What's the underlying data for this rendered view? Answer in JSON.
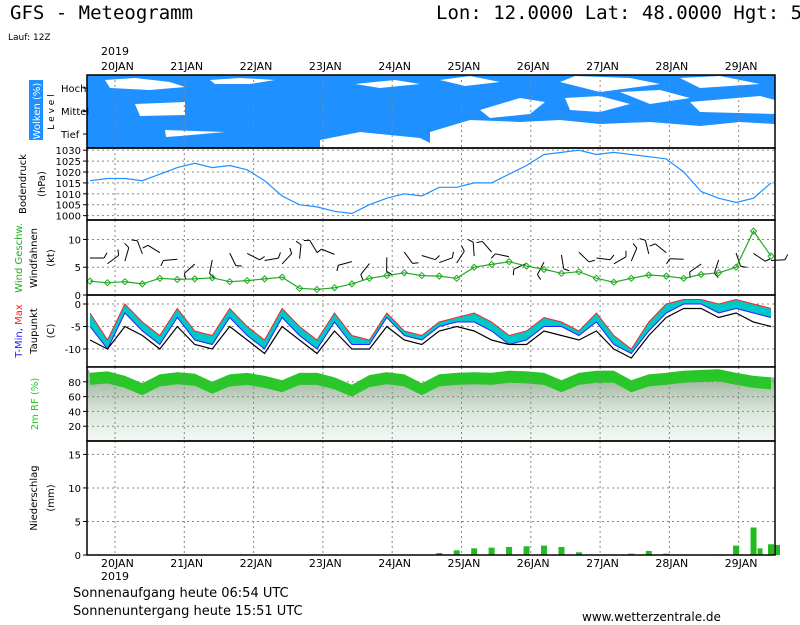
{
  "header": {
    "title": "GFS - Meteogramm",
    "location": "Lon: 12.0000 Lat: 48.0000 Hgt: 5",
    "run": "Lauf: 12Z"
  },
  "footer": {
    "sunrise": "Sonnenaufgang heute 06:54 UTC",
    "sunset": "Sonnenuntergang heute 15:51 UTC",
    "credit": "www.wetterzentrale.de"
  },
  "colors": {
    "cloud_sky": "#1e90ff",
    "pressure_line": "#1e90ff",
    "wind_speed": "#22aa22",
    "temp_band": "#00c8c8",
    "temp_max": "#ff2222",
    "temp_min": "#2222ff",
    "humidity": "#22c822",
    "precip": "#22bb22"
  },
  "chart_data": [
    {
      "type": "table",
      "panel": "clouds",
      "ylabel": "Wolken (%)",
      "level_axis": "L e v e l",
      "levels": [
        "Hoch",
        "Mittel",
        "Tief"
      ],
      "x_labels": [
        "20JAN",
        "21JAN",
        "22JAN",
        "23JAN",
        "24JAN",
        "25JAN",
        "26JAN",
        "27JAN",
        "28JAN",
        "29JAN"
      ],
      "year": "2019"
    },
    {
      "type": "line",
      "panel": "pressure",
      "ylabel": "Bodendruck",
      "unit": "(hPa)",
      "yticks": [
        1000,
        1005,
        1010,
        1015,
        1020,
        1025,
        1030
      ],
      "ylim": [
        998,
        1031
      ],
      "x": [
        0,
        6,
        12,
        18,
        24,
        30,
        36,
        42,
        48,
        54,
        60,
        66,
        72,
        78,
        84,
        90,
        96,
        102,
        108,
        114,
        120,
        126,
        132,
        138,
        144,
        150,
        156,
        162,
        168,
        174,
        180,
        186,
        192,
        198,
        204,
        210,
        216,
        222,
        228,
        234
      ],
      "values": [
        1016,
        1017,
        1017,
        1016,
        1019,
        1022,
        1024,
        1022,
        1023,
        1021,
        1016,
        1009,
        1005,
        1004,
        1002,
        1001,
        1005,
        1008,
        1010,
        1009,
        1013,
        1013,
        1015,
        1015,
        1019,
        1023,
        1028,
        1029,
        1030,
        1028,
        1029,
        1028,
        1027,
        1026,
        1020,
        1011,
        1008,
        1006,
        1008,
        1015
      ]
    },
    {
      "type": "line",
      "panel": "wind",
      "ylabel": "Wind Geschw.",
      "ylabel2": "Windfahnen",
      "unit": "(kt)",
      "yticks": [
        0,
        5,
        10
      ],
      "ylim": [
        0,
        13.5
      ],
      "x": [
        0,
        6,
        12,
        18,
        24,
        30,
        36,
        42,
        48,
        54,
        60,
        66,
        72,
        78,
        84,
        90,
        96,
        102,
        108,
        114,
        120,
        126,
        132,
        138,
        144,
        150,
        156,
        162,
        168,
        174,
        180,
        186,
        192,
        198,
        204,
        210,
        216,
        222,
        228,
        234
      ],
      "values": [
        2.5,
        2.2,
        2.4,
        2.0,
        3.0,
        2.8,
        2.9,
        3.1,
        2.4,
        2.6,
        2.9,
        3.2,
        1.2,
        1.0,
        1.3,
        2.0,
        3.0,
        3.5,
        4.0,
        3.5,
        3.4,
        3.0,
        5.0,
        5.5,
        6.0,
        5.2,
        4.6,
        3.9,
        4.2,
        3.0,
        2.3,
        3.0,
        3.6,
        3.4,
        3.0,
        3.7,
        4.0,
        5.0,
        11.5,
        7.0
      ]
    },
    {
      "type": "area",
      "panel": "temperature",
      "ylabel": "T-Min, Max",
      "ylabel2": "Taupunkt",
      "unit": "(C)",
      "yticks": [
        0,
        -5,
        -10
      ],
      "ylim": [
        -14,
        2
      ],
      "x": [
        0,
        6,
        12,
        18,
        24,
        30,
        36,
        42,
        48,
        54,
        60,
        66,
        72,
        78,
        84,
        90,
        96,
        102,
        108,
        114,
        120,
        126,
        132,
        138,
        144,
        150,
        156,
        162,
        168,
        174,
        180,
        186,
        192,
        198,
        204,
        210,
        216,
        222,
        228,
        234
      ],
      "series": [
        {
          "name": "Max",
          "values": [
            -2,
            -8,
            0,
            -4,
            -7,
            -1,
            -6,
            -7,
            -1,
            -5,
            -8,
            -1,
            -5,
            -8,
            -2,
            -7,
            -8,
            -2,
            -6,
            -7,
            -4,
            -3,
            -2,
            -4,
            -7,
            -6,
            -3,
            -4,
            -6,
            -2,
            -7,
            -10,
            -4,
            0,
            1,
            1,
            0,
            1,
            0,
            -1
          ]
        },
        {
          "name": "Min",
          "values": [
            -5,
            -10,
            -2,
            -6,
            -9,
            -3,
            -8,
            -9,
            -3,
            -7,
            -10,
            -3,
            -7,
            -10,
            -4,
            -9,
            -9,
            -3,
            -7,
            -8,
            -5,
            -4,
            -4,
            -6,
            -9,
            -8,
            -5,
            -5,
            -7,
            -4,
            -9,
            -11,
            -6,
            -2,
            0,
            0,
            -2,
            -1,
            -2,
            -3
          ]
        },
        {
          "name": "Taupunkt",
          "values": [
            -8,
            -10,
            -5,
            -7,
            -10,
            -5,
            -9,
            -10,
            -5,
            -8,
            -11,
            -5,
            -8,
            -11,
            -6,
            -10,
            -10,
            -5,
            -8,
            -9,
            -6,
            -5,
            -6,
            -8,
            -9,
            -9,
            -6,
            -7,
            -8,
            -6,
            -10,
            -12,
            -7,
            -3,
            -1,
            -1,
            -3,
            -2,
            -4,
            -5
          ]
        }
      ]
    },
    {
      "type": "area",
      "panel": "humidity",
      "ylabel": "2m RF (%)",
      "yticks": [
        20,
        40,
        60,
        80
      ],
      "ylim": [
        0,
        100
      ],
      "x": [
        0,
        6,
        12,
        18,
        24,
        30,
        36,
        42,
        48,
        54,
        60,
        66,
        72,
        78,
        84,
        90,
        96,
        102,
        108,
        114,
        120,
        126,
        132,
        138,
        144,
        150,
        156,
        162,
        168,
        174,
        180,
        186,
        192,
        198,
        204,
        210,
        216,
        222,
        228,
        234
      ],
      "values": [
        92,
        94,
        88,
        78,
        90,
        93,
        91,
        80,
        90,
        92,
        88,
        82,
        92,
        92,
        86,
        76,
        89,
        93,
        90,
        78,
        90,
        92,
        93,
        92,
        95,
        94,
        92,
        82,
        92,
        95,
        95,
        82,
        90,
        92,
        95,
        96,
        97,
        92,
        88,
        86
      ]
    },
    {
      "type": "bar",
      "panel": "precipitation",
      "ylabel": "Niederschlag",
      "unit": "(mm)",
      "yticks": [
        0,
        5,
        10,
        15
      ],
      "ylim": [
        0,
        17
      ],
      "x": [
        120,
        126,
        132,
        138,
        144,
        150,
        156,
        162,
        168,
        174,
        180,
        186,
        192,
        198,
        204,
        210,
        216,
        222,
        228,
        234
      ],
      "values": [
        0.3,
        0.7,
        1.0,
        1.1,
        1.2,
        1.3,
        1.4,
        1.2,
        0.4,
        0.0,
        0.0,
        0.2,
        0.6,
        0.2,
        0.0,
        0.0,
        0.1,
        1.4,
        4.1,
        1.6
      ],
      "extra": [
        0.0,
        0.0,
        0.0,
        0.0,
        0.0,
        0.0,
        0.0,
        0.0,
        0.0,
        0.0,
        0.0,
        0.0,
        0.0,
        0.0,
        0.0,
        0.0,
        0.0,
        0.0,
        1.0,
        1.5
      ]
    }
  ]
}
